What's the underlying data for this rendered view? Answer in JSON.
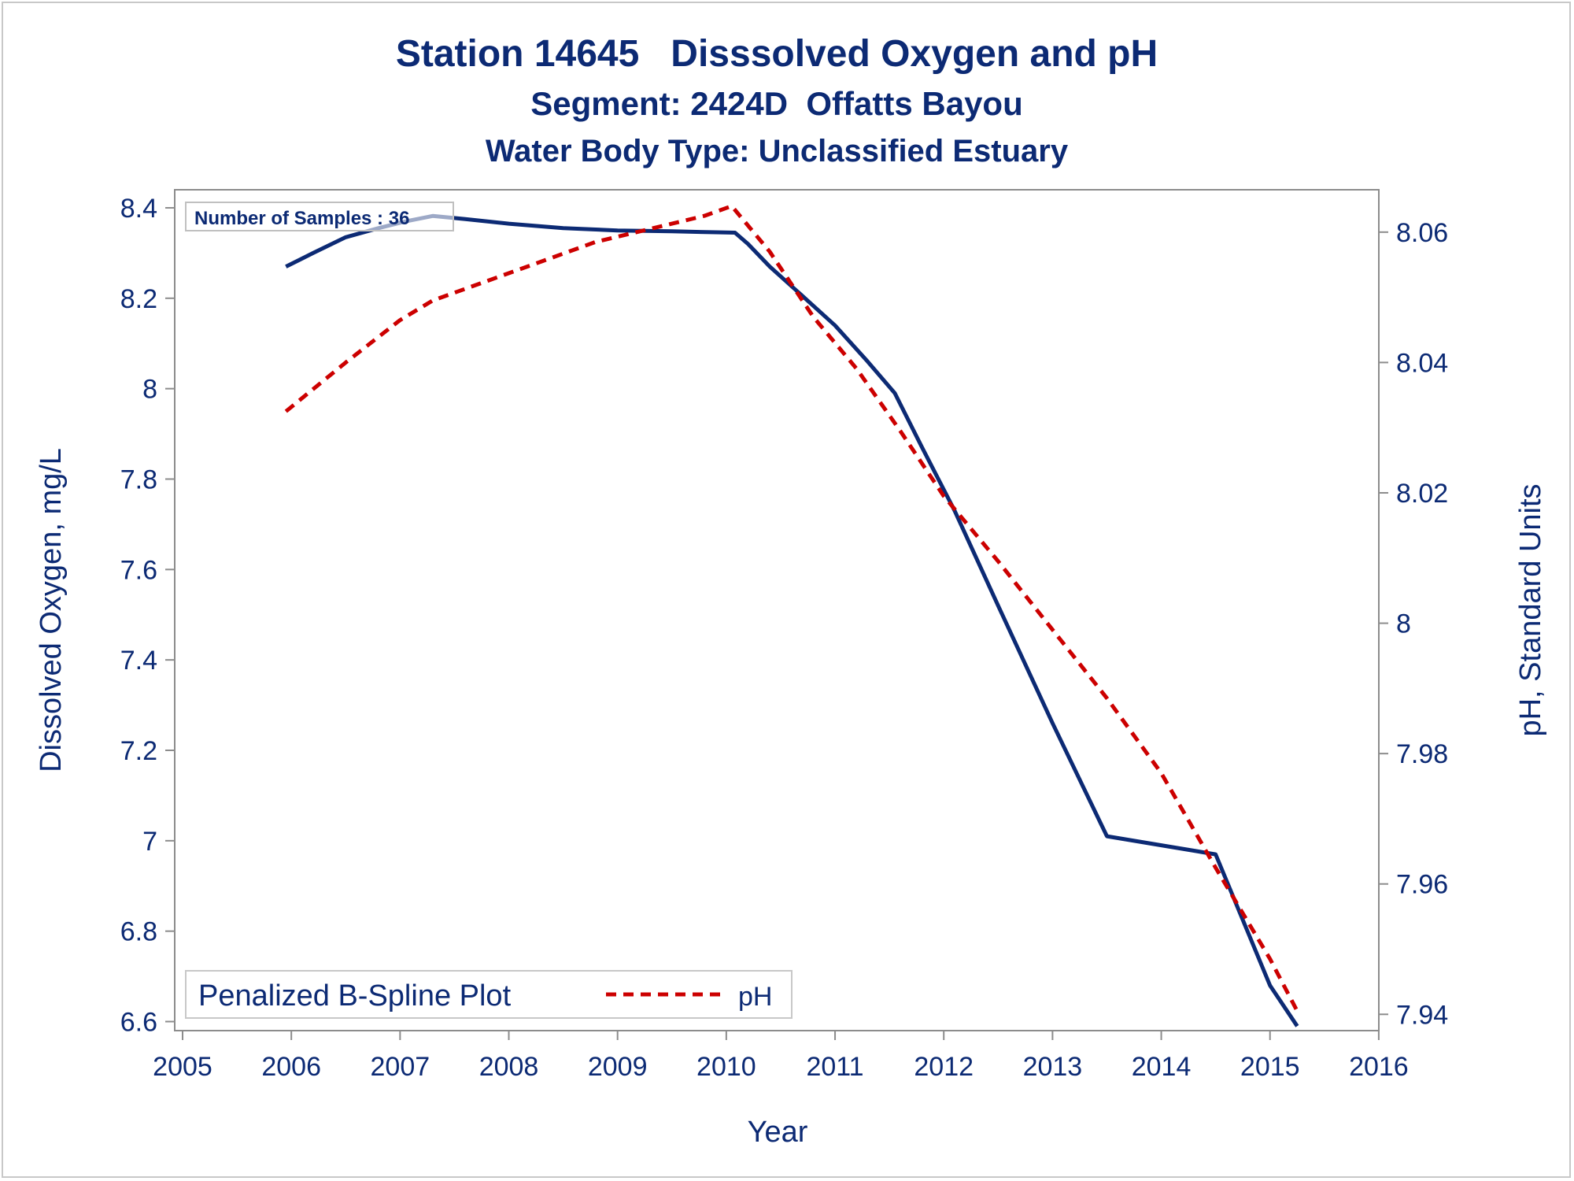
{
  "colors": {
    "text": "#0c2a74",
    "do_line": "#0c2a74",
    "ph_line": "#cc0000",
    "axis": "#8c8c8c"
  },
  "titles": {
    "line1": "Station 14645   Disssolved Oxygen and pH",
    "line2": "Segment: 2424D  Offatts Bayou",
    "line3": "Water Body Type: Unclassified Estuary"
  },
  "inset": {
    "samples_text": "Number of Samples : 36"
  },
  "legend": {
    "title": "Penalized B-Spline Plot",
    "entry_ph": "pH",
    "placement": "bottom-left"
  },
  "chart_data": {
    "type": "line",
    "xlabel": "Year",
    "ylabel": "Dissolved Oxygen, mg/L",
    "y2label": "pH, Standard Units",
    "xlim": [
      2005,
      2016
    ],
    "ylim": [
      6.58,
      8.44
    ],
    "y2lim": [
      7.9375,
      8.0665
    ],
    "xticks": [
      "2005",
      "2006",
      "2007",
      "2008",
      "2009",
      "2010",
      "2011",
      "2012",
      "2013",
      "2014",
      "2015",
      "2016"
    ],
    "yticks": [
      "6.6",
      "6.8",
      "7",
      "7.2",
      "7.4",
      "7.6",
      "7.8",
      "8",
      "8.2",
      "8.4"
    ],
    "y2ticks": [
      "7.94",
      "7.96",
      "7.98",
      "8",
      "8.02",
      "8.04",
      "8.06"
    ],
    "grid": false,
    "series": [
      {
        "axis": "left",
        "style": "solid",
        "x": [
          2005.95,
          2006.2,
          2006.5,
          2006.8,
          2007.05,
          2007.3,
          2007.6,
          2008.0,
          2008.5,
          2009.0,
          2009.5,
          2009.9,
          2010.08,
          2010.2,
          2010.4,
          2010.7,
          2011.0,
          2011.3,
          2011.55,
          2011.8,
          2012.1,
          2012.5,
          2013.0,
          2013.5,
          2014.0,
          2014.5,
          2015.0,
          2015.25
        ],
        "values": [
          8.27,
          8.3,
          8.335,
          8.355,
          8.37,
          8.382,
          8.375,
          8.365,
          8.355,
          8.35,
          8.348,
          8.346,
          8.345,
          8.32,
          8.27,
          8.205,
          8.14,
          8.06,
          7.99,
          7.87,
          7.73,
          7.52,
          7.26,
          7.01,
          6.99,
          6.97,
          6.68,
          6.59
        ]
      },
      {
        "name": "pH",
        "axis": "right",
        "style": "dashed",
        "x": [
          2005.95,
          2006.5,
          2007.0,
          2007.3,
          2007.8,
          2008.3,
          2008.8,
          2009.3,
          2009.8,
          2010.05,
          2010.4,
          2010.8,
          2011.2,
          2011.6,
          2012.0,
          2012.5,
          2013.0,
          2013.5,
          2014.0,
          2014.5,
          2015.0,
          2015.25
        ],
        "values": [
          8.0325,
          8.04,
          8.0465,
          8.0495,
          8.0525,
          8.0555,
          8.0585,
          8.0605,
          8.0625,
          8.064,
          8.057,
          8.047,
          8.039,
          8.0295,
          8.0195,
          8.0095,
          7.999,
          7.9885,
          7.977,
          7.9625,
          7.9485,
          7.9405
        ]
      }
    ]
  }
}
